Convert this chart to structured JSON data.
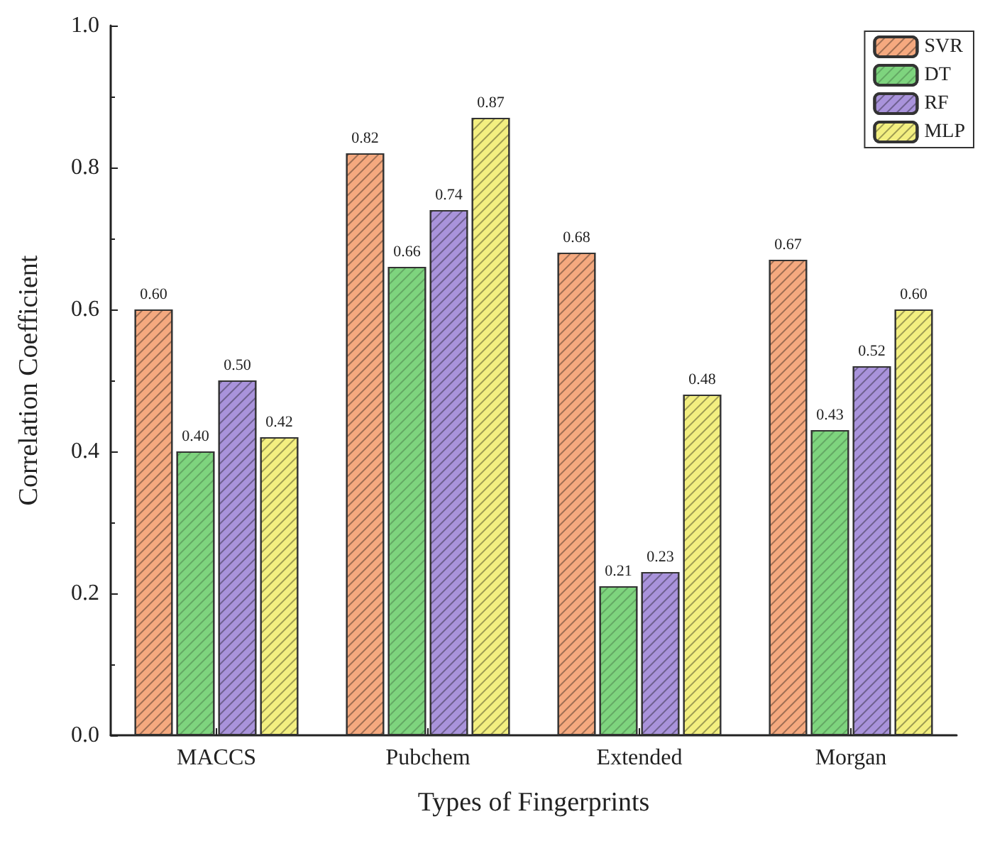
{
  "chart_data": {
    "type": "bar",
    "xlabel": "Types of Fingerprints",
    "ylabel": "Correlation Coefficient",
    "categories": [
      "MACCS",
      "Pubchem",
      "Extended",
      "Morgan"
    ],
    "series": [
      {
        "name": "SVR",
        "color": "#f5a97f",
        "values": [
          0.6,
          0.82,
          0.68,
          0.67
        ],
        "value_labels": [
          "0.60",
          "0.82",
          "0.68",
          "0.67"
        ]
      },
      {
        "name": "DT",
        "color": "#7ed47e",
        "values": [
          0.4,
          0.66,
          0.21,
          0.43
        ],
        "value_labels": [
          "0.40",
          "0.66",
          "0.21",
          "0.43"
        ]
      },
      {
        "name": "RF",
        "color": "#a993db",
        "values": [
          0.5,
          0.74,
          0.23,
          0.52
        ],
        "value_labels": [
          "0.50",
          "0.74",
          "0.23",
          "0.52"
        ]
      },
      {
        "name": "MLP",
        "color": "#f3ef80",
        "values": [
          0.42,
          0.87,
          0.48,
          0.6
        ],
        "value_labels": [
          "0.42",
          "0.87",
          "0.48",
          "0.60"
        ]
      }
    ],
    "ylim": [
      0,
      1
    ],
    "yticks": [
      {
        "value": 0,
        "label": "0.0"
      },
      {
        "value": 0.2,
        "label": "0.2"
      },
      {
        "value": 0.4,
        "label": "0.4"
      },
      {
        "value": 0.6,
        "label": "0.6"
      },
      {
        "value": 0.8,
        "label": "0.8"
      },
      {
        "value": 1,
        "label": "1.0"
      }
    ],
    "grid": false,
    "legend": "top right"
  }
}
